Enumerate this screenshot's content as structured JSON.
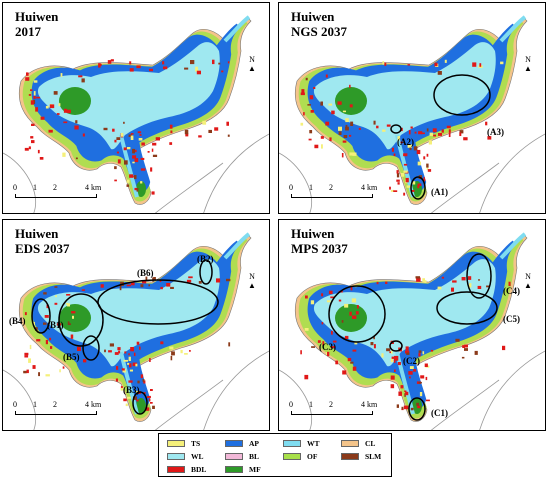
{
  "panels": [
    {
      "region": "Huiwen",
      "scenario": "2017",
      "labels": []
    },
    {
      "region": "Huiwen",
      "scenario": "NGS 2037",
      "labels": [
        "(A1)",
        "(A2)",
        "(A3)"
      ]
    },
    {
      "region": "Huiwen",
      "scenario": "EDS 2037",
      "labels": [
        "(B1)",
        "(B2)",
        "(B3)",
        "(B4)",
        "(B5)",
        "(B6)"
      ]
    },
    {
      "region": "Huiwen",
      "scenario": "MPS 2037",
      "labels": [
        "(C1)",
        "(C2)",
        "(C3)",
        "(C4)",
        "(C5)"
      ]
    }
  ],
  "scale": {
    "ticks": [
      "0",
      "1",
      "2",
      "4 km"
    ]
  },
  "north_label": "N",
  "legend": [
    {
      "code": "TS",
      "color": "#f5f07a"
    },
    {
      "code": "AP",
      "color": "#1f6fe0"
    },
    {
      "code": "WT",
      "color": "#7fdcf0"
    },
    {
      "code": "CL",
      "color": "#f4c48a"
    },
    {
      "code": "WL",
      "color": "#9fe8f0"
    },
    {
      "code": "BL",
      "color": "#f2b8d8"
    },
    {
      "code": "OF",
      "color": "#a8e04a"
    },
    {
      "code": "SLM",
      "color": "#8b3a1a"
    },
    {
      "code": "BDL",
      "color": "#e01818"
    },
    {
      "code": "MF",
      "color": "#2e9a28"
    }
  ]
}
